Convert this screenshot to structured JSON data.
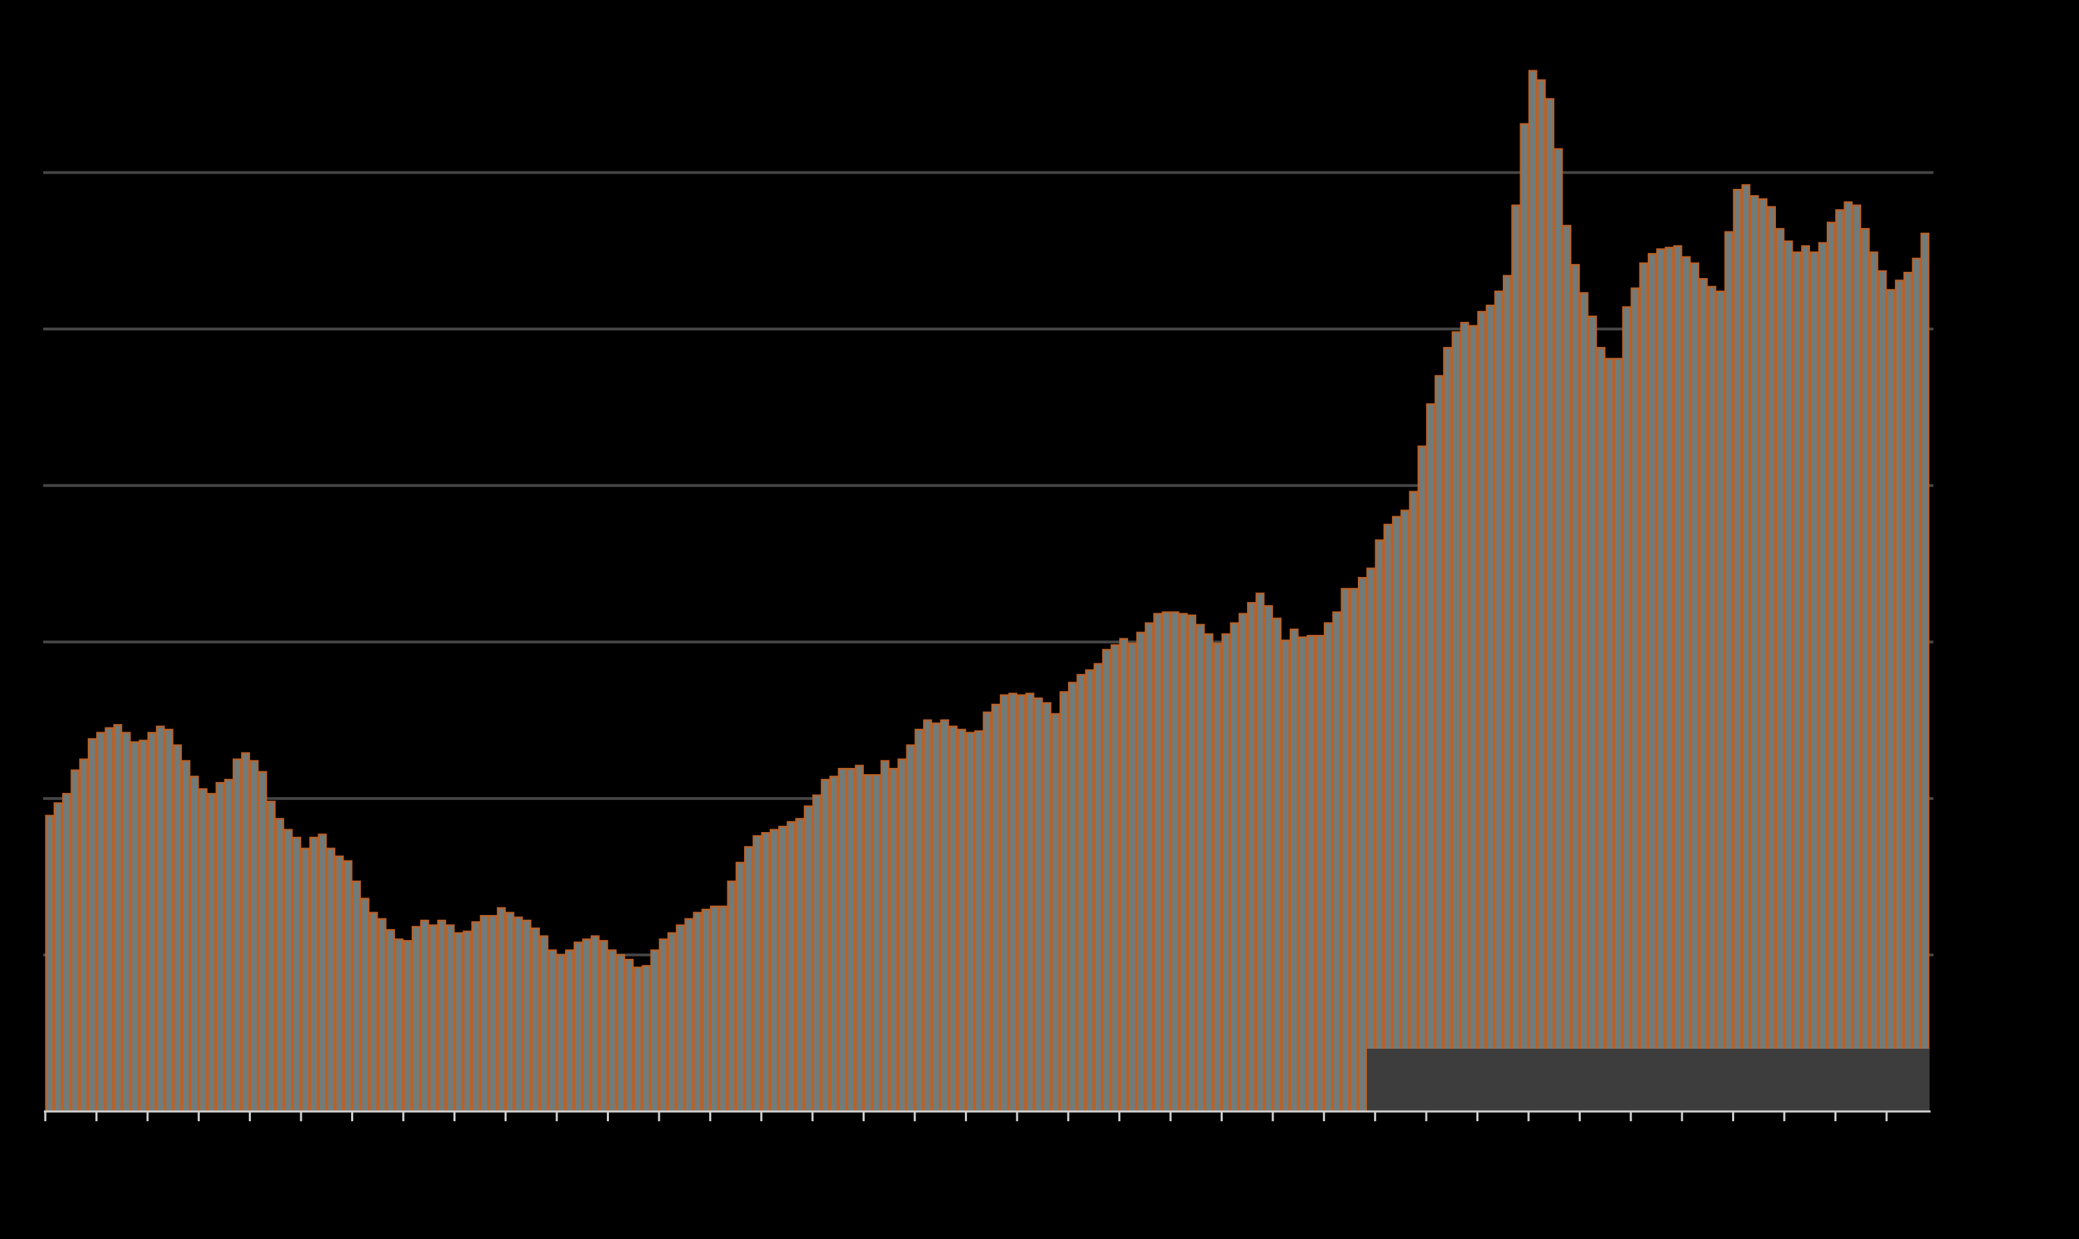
{
  "chart_data": {
    "type": "bar",
    "values": [
      1.89,
      1.97,
      2.03,
      2.18,
      2.25,
      2.38,
      2.42,
      2.45,
      2.47,
      2.42,
      2.36,
      2.37,
      2.42,
      2.46,
      2.44,
      2.34,
      2.24,
      2.14,
      2.06,
      2.03,
      2.1,
      2.12,
      2.25,
      2.29,
      2.24,
      2.17,
      1.98,
      1.87,
      1.8,
      1.75,
      1.68,
      1.75,
      1.77,
      1.68,
      1.63,
      1.6,
      1.47,
      1.36,
      1.27,
      1.23,
      1.16,
      1.1,
      1.09,
      1.18,
      1.22,
      1.19,
      1.22,
      1.19,
      1.14,
      1.15,
      1.21,
      1.25,
      1.25,
      1.3,
      1.27,
      1.24,
      1.22,
      1.17,
      1.12,
      1.03,
      1.0,
      1.03,
      1.08,
      1.1,
      1.12,
      1.09,
      1.03,
      1.0,
      0.97,
      0.92,
      0.93,
      1.03,
      1.1,
      1.14,
      1.19,
      1.23,
      1.27,
      1.29,
      1.31,
      1.31,
      1.47,
      1.59,
      1.69,
      1.76,
      1.78,
      1.8,
      1.82,
      1.85,
      1.87,
      1.95,
      2.02,
      2.12,
      2.14,
      2.19,
      2.19,
      2.21,
      2.15,
      2.15,
      2.24,
      2.19,
      2.25,
      2.34,
      2.44,
      2.5,
      2.48,
      2.5,
      2.46,
      2.44,
      2.42,
      2.43,
      2.55,
      2.6,
      2.66,
      2.67,
      2.66,
      2.67,
      2.64,
      2.61,
      2.54,
      2.68,
      2.74,
      2.79,
      2.82,
      2.86,
      2.95,
      2.98,
      3.02,
      2.99,
      3.06,
      3.12,
      3.18,
      3.19,
      3.19,
      3.18,
      3.17,
      3.11,
      3.05,
      2.99,
      3.05,
      3.12,
      3.18,
      3.25,
      3.31,
      3.23,
      3.15,
      3.01,
      3.08,
      3.03,
      3.04,
      3.04,
      3.12,
      3.19,
      3.34,
      3.34,
      3.41,
      3.47,
      3.65,
      3.75,
      3.8,
      3.84,
      3.96,
      4.25,
      4.52,
      4.7,
      4.88,
      4.98,
      5.04,
      5.02,
      5.11,
      5.15,
      5.24,
      5.34,
      5.79,
      6.31,
      6.65,
      6.59,
      6.47,
      6.15,
      5.66,
      5.41,
      5.23,
      5.08,
      4.88,
      4.81,
      4.81,
      5.14,
      5.26,
      5.42,
      5.48,
      5.51,
      5.52,
      5.53,
      5.46,
      5.42,
      5.32,
      5.27,
      5.24,
      5.62,
      5.89,
      5.92,
      5.85,
      5.83,
      5.78,
      5.64,
      5.56,
      5.49,
      5.53,
      5.49,
      5.55,
      5.68,
      5.76,
      5.81,
      5.79,
      5.64,
      5.49,
      5.37,
      5.25,
      5.31,
      5.36,
      5.45,
      5.61
    ],
    "color": "#717c7a",
    "edge_color": "#b8622a",
    "ylim": [
      0,
      7
    ],
    "yticks": [
      1,
      2,
      3,
      4,
      5,
      6
    ],
    "grid": true
  }
}
